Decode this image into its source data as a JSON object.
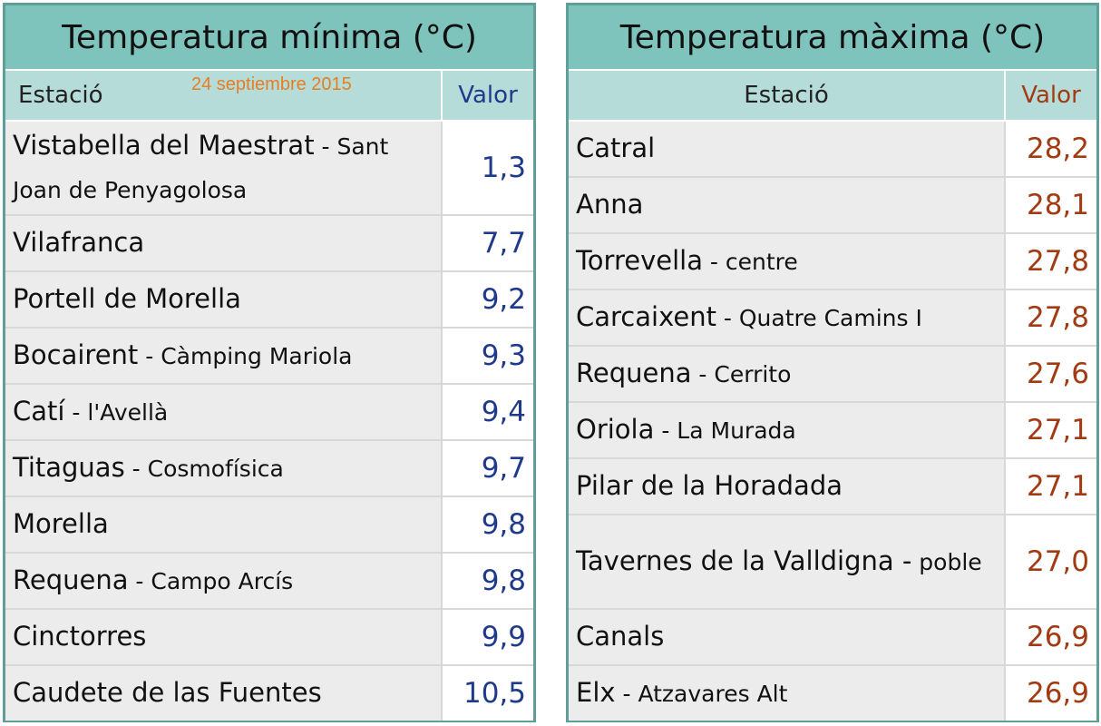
{
  "min_table": {
    "title": "Temperatura mínima (°C)",
    "date": "24 septiembre 2015",
    "col_station": "Estació",
    "col_value": "Valor",
    "rows": [
      {
        "name": "Vistabella del Maestrat",
        "sub": " - Sant Joan de Penyagolosa",
        "value": "1,3"
      },
      {
        "name": "Vilafranca",
        "sub": "",
        "value": "7,7"
      },
      {
        "name": "Portell de Morella",
        "sub": "",
        "value": "9,2"
      },
      {
        "name": "Bocairent",
        "sub": " - Càmping Mariola",
        "value": "9,3"
      },
      {
        "name": "Catí",
        "sub": " - l'Avellà",
        "value": "9,4"
      },
      {
        "name": "Titaguas",
        "sub": " - Cosmofísica",
        "value": "9,7"
      },
      {
        "name": "Morella",
        "sub": "",
        "value": "9,8"
      },
      {
        "name": "Requena",
        "sub": " - Campo Arcís",
        "value": "9,8"
      },
      {
        "name": "Cinctorres",
        "sub": "",
        "value": "9,9"
      },
      {
        "name": "Caudete de las Fuentes",
        "sub": "",
        "value": "10,5"
      }
    ]
  },
  "max_table": {
    "title": "Temperatura màxima (°C)",
    "col_station": "Estació",
    "col_value": "Valor",
    "rows": [
      {
        "name": "Catral",
        "sub": "",
        "value": "28,2"
      },
      {
        "name": "Anna",
        "sub": "",
        "value": "28,1"
      },
      {
        "name": "Torrevella",
        "sub": " - centre",
        "value": "27,8"
      },
      {
        "name": "Carcaixent",
        "sub": " - Quatre Camins I",
        "value": "27,8"
      },
      {
        "name": "Requena",
        "sub": " - Cerrito",
        "value": "27,6"
      },
      {
        "name": "Oriola",
        "sub": " - La Murada",
        "value": "27,1"
      },
      {
        "name": "Pilar de la Horadada",
        "sub": "",
        "value": "27,1"
      },
      {
        "name": "Tavernes de la Valldigna -",
        "sub": " poble",
        "value": "27,0"
      },
      {
        "name": "Canals",
        "sub": "",
        "value": "26,9"
      },
      {
        "name": "Elx",
        "sub": " - Atzavares Alt",
        "value": "26,9"
      }
    ]
  }
}
